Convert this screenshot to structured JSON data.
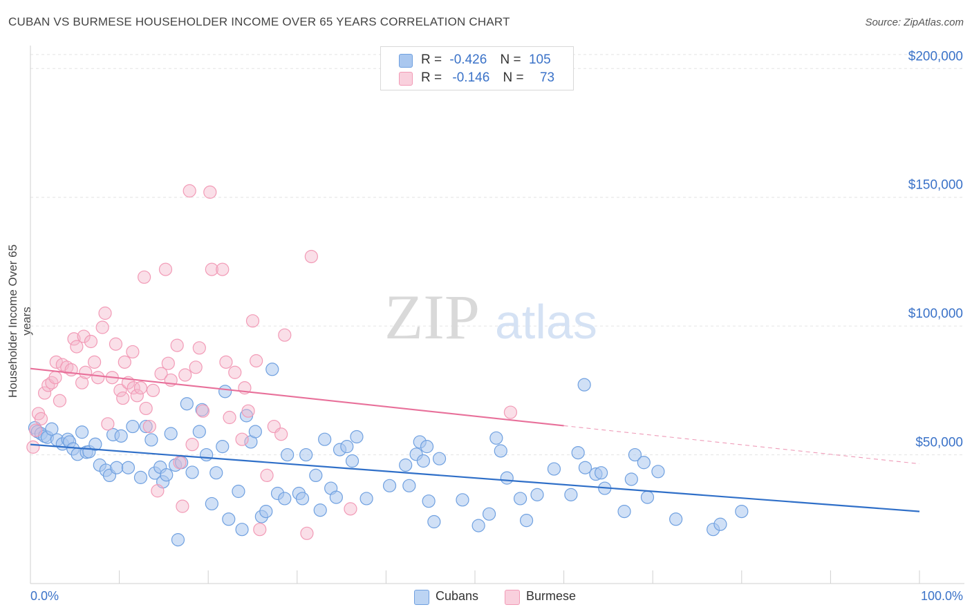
{
  "title": "CUBAN VS BURMESE HOUSEHOLDER INCOME OVER 65 YEARS CORRELATION CHART",
  "source": "Source: ZipAtlas.com",
  "watermark": {
    "zip": "ZIP",
    "atlas": "atlas"
  },
  "legend": {
    "rows": [
      {
        "r_label": "R =",
        "r_value": "-0.426",
        "n_label": "N =",
        "n_value": "105",
        "color": "#a9c7ef"
      },
      {
        "r_label": "R =",
        "r_value": "-0.146",
        "n_label": "N =",
        "n_value": "73",
        "color": "#f5b8cb"
      }
    ]
  },
  "bottom_legend": [
    {
      "label": "Cubans",
      "color": "#a9c7ef"
    },
    {
      "label": "Burmese",
      "color": "#f5b8cb"
    }
  ],
  "chart_data": {
    "type": "scatter",
    "title": "CUBAN VS BURMESE HOUSEHOLDER INCOME OVER 65 YEARS CORRELATION CHART",
    "xlabel": "",
    "ylabel": "Householder Income Over 65 years",
    "xlim": [
      0,
      100
    ],
    "ylim": [
      0,
      210000
    ],
    "x_tick_labels": [
      "0.0%",
      "100.0%"
    ],
    "y_ticks": [
      50000,
      100000,
      150000,
      200000
    ],
    "y_tick_labels": [
      "$50,000",
      "$100,000",
      "$150,000",
      "$200,000"
    ],
    "grid": true,
    "legend_position": "top-center",
    "series": [
      {
        "name": "Cubans",
        "color": "#6fa0e0",
        "line_color": "#2f6fc8",
        "trend": {
          "x": [
            0,
            100
          ],
          "y": [
            54000,
            28000
          ],
          "dash_from": null
        },
        "points": [
          [
            0.5,
            60500
          ],
          [
            0.8,
            59000
          ],
          [
            1.2,
            58200
          ],
          [
            1.6,
            57200
          ],
          [
            1.9,
            56800
          ],
          [
            2.4,
            60000
          ],
          [
            3.0,
            55800
          ],
          [
            3.6,
            54200
          ],
          [
            4.2,
            56000
          ],
          [
            4.4,
            55000
          ],
          [
            4.8,
            52300
          ],
          [
            5.3,
            50200
          ],
          [
            5.8,
            58800
          ],
          [
            6.3,
            51000
          ],
          [
            6.6,
            51200
          ],
          [
            7.3,
            54100
          ],
          [
            7.8,
            46000
          ],
          [
            8.5,
            44000
          ],
          [
            8.9,
            42000
          ],
          [
            9.3,
            57800
          ],
          [
            9.7,
            45000
          ],
          [
            10.2,
            57300
          ],
          [
            11.0,
            45000
          ],
          [
            11.5,
            61000
          ],
          [
            12.4,
            41200
          ],
          [
            13.0,
            61000
          ],
          [
            13.6,
            55800
          ],
          [
            14.0,
            42900
          ],
          [
            14.6,
            45200
          ],
          [
            14.9,
            39500
          ],
          [
            15.3,
            42200
          ],
          [
            15.8,
            58200
          ],
          [
            16.3,
            46000
          ],
          [
            16.6,
            17000
          ],
          [
            17.0,
            47000
          ],
          [
            17.6,
            69800
          ],
          [
            18.2,
            43200
          ],
          [
            19.0,
            59000
          ],
          [
            19.3,
            67500
          ],
          [
            19.8,
            50000
          ],
          [
            20.4,
            31000
          ],
          [
            20.9,
            43000
          ],
          [
            21.6,
            53200
          ],
          [
            21.9,
            74600
          ],
          [
            22.3,
            25000
          ],
          [
            23.4,
            35800
          ],
          [
            23.8,
            21000
          ],
          [
            24.3,
            65200
          ],
          [
            24.8,
            55000
          ],
          [
            25.3,
            59000
          ],
          [
            26.0,
            26000
          ],
          [
            26.5,
            28000
          ],
          [
            27.2,
            83200
          ],
          [
            27.8,
            35000
          ],
          [
            28.6,
            33000
          ],
          [
            28.9,
            50000
          ],
          [
            30.2,
            35000
          ],
          [
            30.6,
            33000
          ],
          [
            31.0,
            50000
          ],
          [
            32.1,
            42000
          ],
          [
            32.6,
            28500
          ],
          [
            33.1,
            56000
          ],
          [
            33.8,
            37000
          ],
          [
            34.4,
            33500
          ],
          [
            34.8,
            52000
          ],
          [
            35.6,
            53200
          ],
          [
            36.2,
            47600
          ],
          [
            36.7,
            57000
          ],
          [
            37.8,
            33000
          ],
          [
            40.4,
            38000
          ],
          [
            42.2,
            46000
          ],
          [
            42.6,
            38000
          ],
          [
            43.4,
            50200
          ],
          [
            43.8,
            55000
          ],
          [
            44.2,
            47600
          ],
          [
            44.6,
            53200
          ],
          [
            44.8,
            32000
          ],
          [
            45.4,
            24000
          ],
          [
            46.0,
            48500
          ],
          [
            48.6,
            32500
          ],
          [
            50.4,
            22500
          ],
          [
            51.6,
            27000
          ],
          [
            52.4,
            56500
          ],
          [
            52.9,
            51500
          ],
          [
            53.6,
            41000
          ],
          [
            55.1,
            33000
          ],
          [
            55.8,
            24500
          ],
          [
            57.0,
            34500
          ],
          [
            58.9,
            44500
          ],
          [
            60.8,
            34500
          ],
          [
            61.6,
            50800
          ],
          [
            62.3,
            77200
          ],
          [
            62.4,
            45000
          ],
          [
            63.6,
            42500
          ],
          [
            64.2,
            43000
          ],
          [
            64.6,
            37000
          ],
          [
            66.8,
            28000
          ],
          [
            67.6,
            40500
          ],
          [
            68.0,
            50000
          ],
          [
            69.0,
            47000
          ],
          [
            69.4,
            33500
          ],
          [
            70.6,
            43500
          ],
          [
            72.6,
            25000
          ],
          [
            76.8,
            21000
          ],
          [
            77.6,
            23000
          ],
          [
            80.0,
            28000
          ]
        ]
      },
      {
        "name": "Burmese",
        "color": "#f29ab6",
        "line_color": "#e8709a",
        "trend": {
          "x": [
            0,
            100
          ],
          "y": [
            83500,
            46500
          ],
          "dash_from": 60
        },
        "points": [
          [
            0.3,
            53000
          ],
          [
            0.6,
            59500
          ],
          [
            0.9,
            66000
          ],
          [
            1.2,
            64000
          ],
          [
            1.6,
            74000
          ],
          [
            2.0,
            77000
          ],
          [
            2.4,
            78000
          ],
          [
            2.8,
            80000
          ],
          [
            2.9,
            86000
          ],
          [
            3.3,
            71000
          ],
          [
            3.6,
            85000
          ],
          [
            4.1,
            84000
          ],
          [
            4.6,
            83000
          ],
          [
            4.9,
            95000
          ],
          [
            5.2,
            92000
          ],
          [
            5.8,
            78000
          ],
          [
            6.0,
            96000
          ],
          [
            6.2,
            82000
          ],
          [
            6.8,
            94000
          ],
          [
            7.2,
            86000
          ],
          [
            7.6,
            80000
          ],
          [
            8.1,
            99500
          ],
          [
            8.4,
            105000
          ],
          [
            8.7,
            62000
          ],
          [
            9.2,
            80000
          ],
          [
            9.6,
            93000
          ],
          [
            10.1,
            75000
          ],
          [
            10.4,
            72000
          ],
          [
            10.6,
            86000
          ],
          [
            11.0,
            78000
          ],
          [
            11.5,
            90000
          ],
          [
            11.6,
            76000
          ],
          [
            12.0,
            73000
          ],
          [
            12.4,
            76000
          ],
          [
            12.8,
            119000
          ],
          [
            13.0,
            68000
          ],
          [
            13.4,
            61000
          ],
          [
            13.8,
            75000
          ],
          [
            14.3,
            36000
          ],
          [
            14.7,
            81500
          ],
          [
            15.2,
            122000
          ],
          [
            15.5,
            85500
          ],
          [
            15.8,
            79000
          ],
          [
            16.5,
            92500
          ],
          [
            16.8,
            47000
          ],
          [
            17.1,
            30000
          ],
          [
            17.4,
            81000
          ],
          [
            17.9,
            152500
          ],
          [
            18.2,
            54000
          ],
          [
            18.6,
            84000
          ],
          [
            19.0,
            91500
          ],
          [
            19.4,
            67000
          ],
          [
            20.2,
            152000
          ],
          [
            20.4,
            122000
          ],
          [
            21.6,
            122000
          ],
          [
            22.0,
            86000
          ],
          [
            22.4,
            64500
          ],
          [
            23.0,
            82000
          ],
          [
            23.8,
            56000
          ],
          [
            24.1,
            76000
          ],
          [
            24.5,
            67000
          ],
          [
            25.0,
            102000
          ],
          [
            25.4,
            86500
          ],
          [
            25.8,
            21000
          ],
          [
            26.6,
            42000
          ],
          [
            27.4,
            61000
          ],
          [
            28.2,
            58000
          ],
          [
            28.6,
            96500
          ],
          [
            31.1,
            19500
          ],
          [
            31.6,
            127000
          ],
          [
            36.0,
            29000
          ],
          [
            54.0,
            66500
          ]
        ]
      }
    ]
  }
}
